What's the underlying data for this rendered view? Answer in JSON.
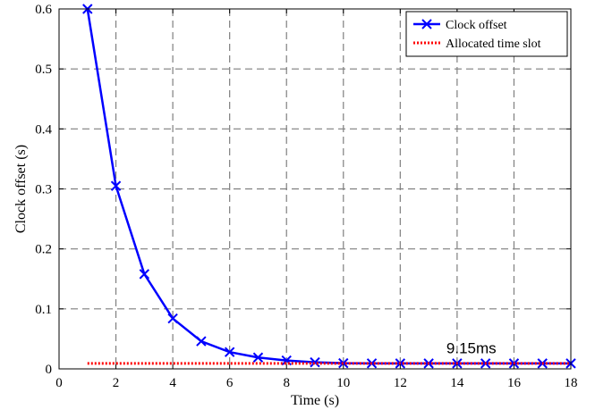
{
  "chart_data": {
    "type": "line",
    "title": "",
    "xlabel": "Time (s)",
    "ylabel": "Clock offset (s)",
    "xlim": [
      0,
      18
    ],
    "ylim": [
      0,
      0.6
    ],
    "xticks": [
      0,
      2,
      4,
      6,
      8,
      10,
      12,
      14,
      16,
      18
    ],
    "yticks": [
      0,
      0.1,
      0.2,
      0.3,
      0.4,
      0.5,
      0.6
    ],
    "xtick_labels": [
      "0",
      "2",
      "4",
      "6",
      "8",
      "10",
      "12",
      "14",
      "16",
      "18"
    ],
    "ytick_labels": [
      "0",
      "0.1",
      "0.2",
      "0.3",
      "0.4",
      "0.5",
      "0.6"
    ],
    "grid": true,
    "grid_style": "dashed",
    "legend_position": "top-right",
    "series": [
      {
        "name": "Clock offset",
        "color": "#0000ff",
        "line_style": "solid",
        "marker": "x",
        "x": [
          1,
          2,
          3,
          4,
          5,
          6,
          7,
          8,
          9,
          10,
          11,
          12,
          13,
          14,
          15,
          16,
          17,
          18
        ],
        "y": [
          0.6,
          0.305,
          0.158,
          0.084,
          0.046,
          0.028,
          0.019,
          0.014,
          0.011,
          0.0095,
          0.0092,
          0.0091,
          0.0091,
          0.0091,
          0.0091,
          0.0091,
          0.0091,
          0.0091
        ]
      },
      {
        "name": "Allocated time slot",
        "color": "#ff0000",
        "line_style": "dotted",
        "marker": "none",
        "x": [
          1,
          18
        ],
        "y": [
          0.00915,
          0.00915
        ]
      }
    ],
    "annotations": [
      {
        "text": "9.15ms",
        "x": 14.5,
        "y": 0.026
      }
    ]
  }
}
